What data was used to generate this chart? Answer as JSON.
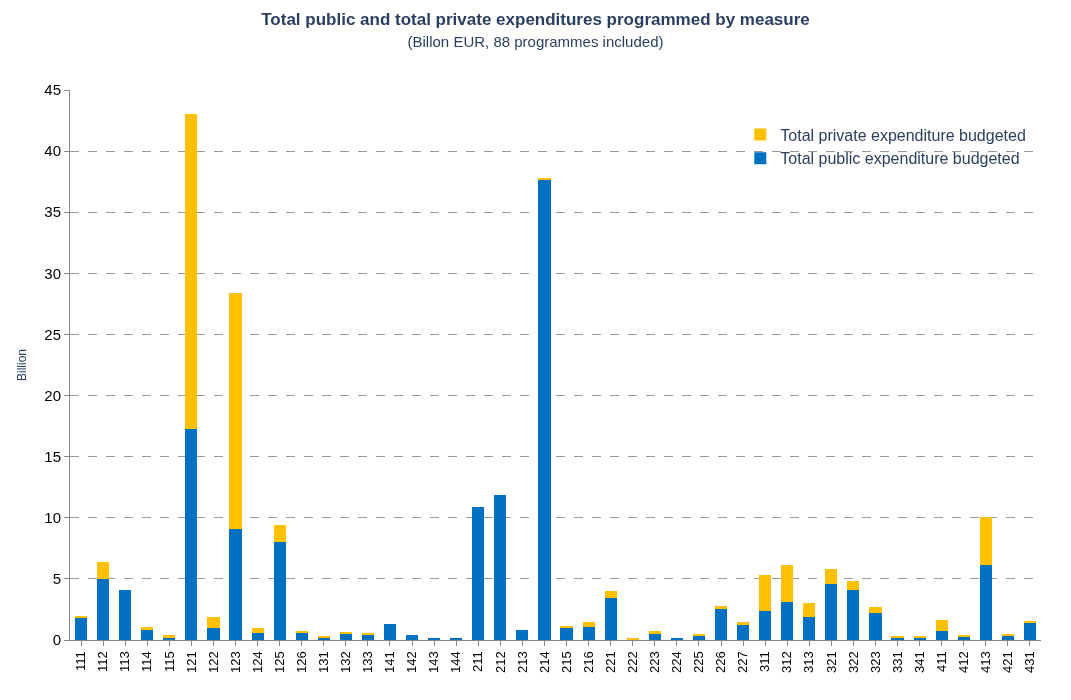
{
  "chart_data": {
    "type": "bar",
    "title": "Total public and total private expenditures programmed by measure",
    "subtitle": "(Billon EUR, 88 programmes included)",
    "ylabel": "Billion",
    "categories": [
      "111",
      "112",
      "113",
      "114",
      "115",
      "121",
      "122",
      "123",
      "124",
      "125",
      "126",
      "131",
      "132",
      "133",
      "141",
      "142",
      "143",
      "144",
      "211",
      "212",
      "213",
      "214",
      "215",
      "216",
      "221",
      "222",
      "223",
      "224",
      "225",
      "226",
      "227",
      "311",
      "312",
      "313",
      "321",
      "322",
      "323",
      "331",
      "341",
      "411",
      "412",
      "413",
      "421",
      "431"
    ],
    "stacked": true,
    "series": [
      {
        "name": "Total public expenditure budgeted",
        "color": "#0070c0",
        "values": [
          1.8,
          5.0,
          4.1,
          0.8,
          0.2,
          17.3,
          1.0,
          9.1,
          0.6,
          8.0,
          0.6,
          0.2,
          0.5,
          0.4,
          1.3,
          0.4,
          0.1,
          0.1,
          10.9,
          11.9,
          0.8,
          37.7,
          1.0,
          1.1,
          3.4,
          0,
          0.5,
          0.1,
          0.4,
          2.5,
          1.2,
          2.4,
          3.1,
          1.9,
          4.6,
          4.1,
          2.2,
          0.2,
          0.2,
          0.7,
          0.3,
          6.1,
          0.4,
          1.4
        ]
      },
      {
        "name": "Total private expenditure budgeted",
        "color": "#ffc000",
        "values": [
          0.2,
          1.4,
          0,
          0.3,
          0.2,
          25.7,
          0.9,
          19.3,
          0.4,
          1.4,
          0.1,
          0.1,
          0.1,
          0.2,
          0,
          0,
          0,
          0,
          0,
          0,
          0,
          0.1,
          0.1,
          0.4,
          0.6,
          0.2,
          0.2,
          0,
          0.1,
          0.3,
          0.3,
          2.9,
          3.0,
          1.1,
          1.2,
          0.7,
          0.5,
          0.1,
          0.1,
          0.9,
          0.1,
          4.0,
          0.1,
          0.1
        ]
      }
    ],
    "ylim": [
      0,
      45
    ],
    "yticks": [
      0,
      5,
      10,
      15,
      20,
      25,
      30,
      35,
      40,
      45
    ],
    "grid": "y",
    "legend": "top right"
  }
}
